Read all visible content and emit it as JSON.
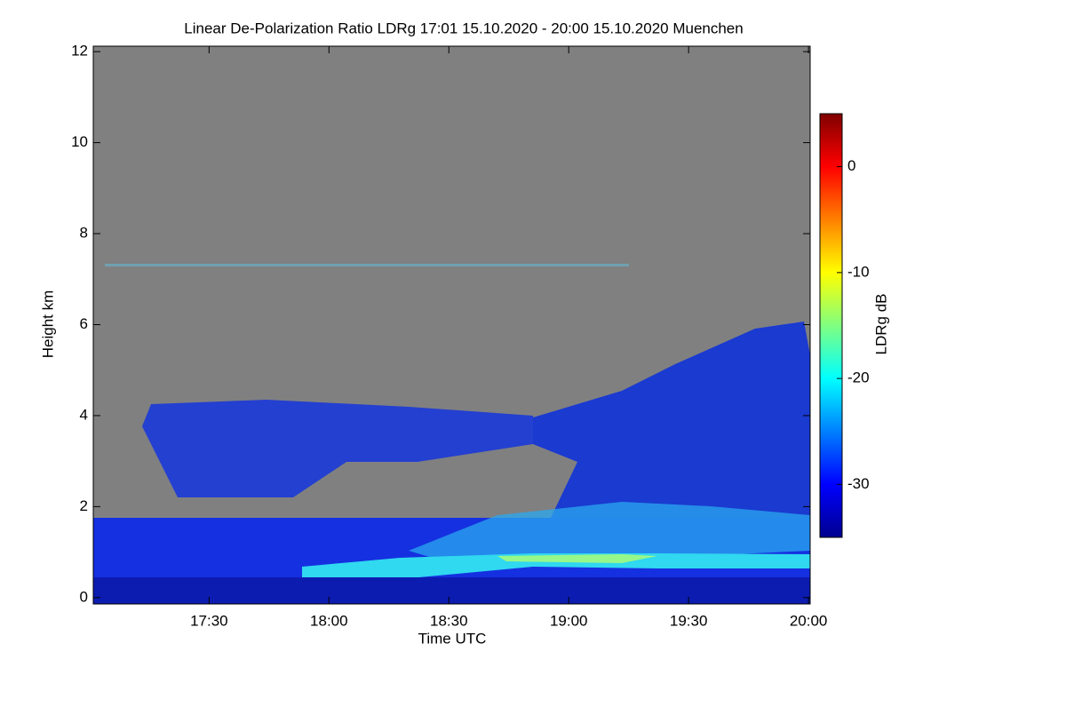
{
  "chart_data": {
    "type": "heatmap",
    "title": "Linear De-Polarization Ratio LDRg   17:01 15.10.2020 - 20:00 15.10.2020 Muenchen",
    "x_label": "Time UTC",
    "y_label": "Height km",
    "colorbar_label": "LDRg dB",
    "xlim": [
      17.017,
      20.007
    ],
    "xticks": [
      {
        "value": 17.5,
        "label": "17:30"
      },
      {
        "value": 18,
        "label": "18:00"
      },
      {
        "value": 18.5,
        "label": "18:30"
      },
      {
        "value": 19,
        "label": "19:00"
      },
      {
        "value": 19.5,
        "label": "19:30"
      },
      {
        "value": 20,
        "label": "20:00"
      }
    ],
    "ylim": [
      -0.14,
      12.12
    ],
    "yticks": [
      0,
      2,
      4,
      6,
      8,
      10,
      12
    ],
    "zlim": [
      -35,
      5
    ],
    "zticks": [
      -30,
      -20,
      -10,
      0
    ],
    "colormap": [
      "#00008f",
      "#0000ff",
      "#0080ff",
      "#00ffff",
      "#80ff80",
      "#ffff00",
      "#ff8000",
      "#ff0000",
      "#800000"
    ],
    "no_data_color": "#808080"
  }
}
